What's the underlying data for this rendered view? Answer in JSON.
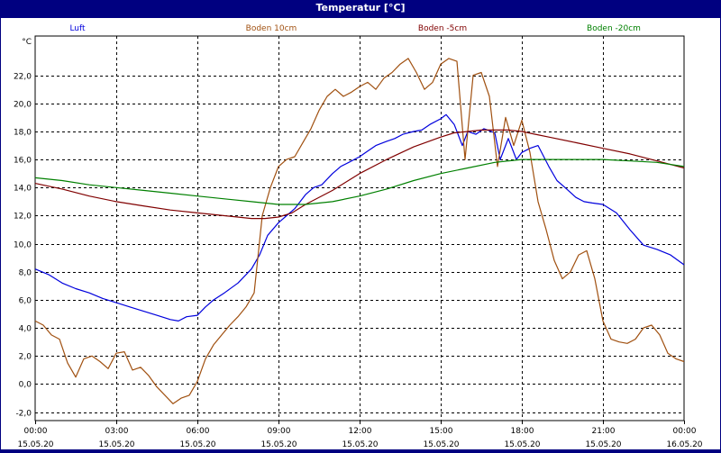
{
  "window": {
    "title": "Temperatur [°C]"
  },
  "chart_data": {
    "type": "line",
    "ylabel": "°C",
    "ylim": [
      -2.6,
      24.8
    ],
    "grid": true,
    "legend_position": "top",
    "yticks": [
      -2.0,
      0.0,
      2.0,
      4.0,
      6.0,
      8.0,
      10.0,
      12.0,
      14.0,
      16.0,
      18.0,
      20.0,
      22.0
    ],
    "ytick_labels": [
      "-2,0",
      "0,0",
      "2,0",
      "4,0",
      "6,0",
      "8,0",
      "10,0",
      "12,0",
      "14,0",
      "16,0",
      "18,0",
      "20,0",
      "22,0"
    ],
    "xlim": [
      0,
      24
    ],
    "xticks": [
      0,
      3,
      6,
      9,
      12,
      15,
      18,
      21,
      24
    ],
    "xtick_times": [
      "00:00",
      "03:00",
      "06:00",
      "09:00",
      "12:00",
      "15:00",
      "18:00",
      "21:00",
      "00:00"
    ],
    "xtick_dates": [
      "15.05.20",
      "15.05.20",
      "15.05.20",
      "15.05.20",
      "15.05.20",
      "15.05.20",
      "15.05.20",
      "15.05.20",
      "16.05.20"
    ],
    "series": [
      {
        "name": "Luft",
        "color": "#0000dd",
        "x": [
          0,
          0.5,
          1,
          1.5,
          2,
          2.5,
          3,
          3.5,
          4,
          4.5,
          5,
          5.3,
          5.6,
          6,
          6.3,
          6.6,
          7,
          7.5,
          8,
          8.3,
          8.6,
          9,
          9.3,
          9.6,
          10,
          10.3,
          10.6,
          11,
          11.3,
          11.6,
          12,
          12.3,
          12.6,
          13,
          13.3,
          13.6,
          14,
          14.3,
          14.6,
          15,
          15.2,
          15.5,
          15.8,
          16,
          16.3,
          16.6,
          17,
          17.2,
          17.5,
          17.8,
          18,
          18.3,
          18.6,
          19,
          19.3,
          19.6,
          20,
          20.3,
          20.6,
          21,
          21.5,
          22,
          22.5,
          23,
          23.5,
          24
        ],
        "values": [
          8.2,
          7.8,
          7.2,
          6.8,
          6.5,
          6.1,
          5.8,
          5.5,
          5.2,
          4.9,
          4.6,
          4.5,
          4.8,
          4.9,
          5.5,
          6.0,
          6.5,
          7.2,
          8.2,
          9.2,
          10.6,
          11.5,
          12.0,
          12.5,
          13.5,
          14.0,
          14.2,
          15.0,
          15.5,
          15.8,
          16.2,
          16.6,
          17.0,
          17.3,
          17.5,
          17.8,
          18.0,
          18.1,
          18.5,
          18.9,
          19.2,
          18.5,
          17.0,
          18.0,
          17.8,
          18.2,
          17.9,
          16.0,
          17.5,
          16.0,
          16.5,
          16.8,
          17.0,
          15.5,
          14.5,
          14.0,
          13.3,
          13.0,
          12.9,
          12.8,
          12.2,
          11.0,
          9.9,
          9.6,
          9.2,
          8.5
        ]
      },
      {
        "name": "Boden 10cm",
        "color": "#a05010",
        "x": [
          0,
          0.3,
          0.6,
          0.9,
          1.2,
          1.5,
          1.8,
          2.1,
          2.4,
          2.7,
          3.0,
          3.3,
          3.6,
          3.9,
          4.2,
          4.5,
          4.8,
          5.1,
          5.4,
          5.7,
          6.0,
          6.3,
          6.6,
          6.9,
          7.2,
          7.5,
          7.8,
          8.1,
          8.4,
          8.7,
          9.0,
          9.3,
          9.6,
          9.9,
          10.2,
          10.5,
          10.8,
          11.1,
          11.4,
          11.7,
          12.0,
          12.3,
          12.6,
          12.9,
          13.2,
          13.5,
          13.8,
          14.1,
          14.4,
          14.7,
          15.0,
          15.3,
          15.6,
          15.9,
          16.2,
          16.5,
          16.8,
          17.1,
          17.4,
          17.7,
          18.0,
          18.3,
          18.6,
          18.9,
          19.2,
          19.5,
          19.8,
          20.1,
          20.4,
          20.7,
          21.0,
          21.3,
          21.6,
          21.9,
          22.2,
          22.5,
          22.8,
          23.1,
          23.4,
          23.7,
          24.0
        ],
        "values": [
          4.5,
          4.2,
          3.5,
          3.2,
          1.5,
          0.5,
          1.8,
          2.0,
          1.6,
          1.1,
          2.2,
          2.3,
          1.0,
          1.2,
          0.6,
          -0.2,
          -0.8,
          -1.4,
          -1.0,
          -0.8,
          0.2,
          1.8,
          2.8,
          3.5,
          4.2,
          4.8,
          5.5,
          6.5,
          12.0,
          14.0,
          15.5,
          16.0,
          16.2,
          17.2,
          18.2,
          19.5,
          20.5,
          21.0,
          20.5,
          20.8,
          21.2,
          21.5,
          21.0,
          21.8,
          22.2,
          22.8,
          23.2,
          22.2,
          21.0,
          21.5,
          22.8,
          23.2,
          23.0,
          16.0,
          22.0,
          22.2,
          20.5,
          15.5,
          19.0,
          17.0,
          18.8,
          16.5,
          13.0,
          11.0,
          8.8,
          7.5,
          8.0,
          9.2,
          9.5,
          7.5,
          4.5,
          3.2,
          3.0,
          2.9,
          3.2,
          4.0,
          4.2,
          3.5,
          2.2,
          1.8,
          1.6
        ]
      },
      {
        "name": "Boden -5cm",
        "color": "#800000",
        "x": [
          0,
          1,
          2,
          3,
          4,
          5,
          6,
          7,
          8,
          8.5,
          9,
          9.5,
          10,
          11,
          12,
          13,
          14,
          15,
          15.5,
          16,
          16.5,
          17,
          17.5,
          18,
          18.5,
          19,
          20,
          21,
          22,
          23,
          24
        ],
        "values": [
          14.3,
          13.9,
          13.4,
          13.0,
          12.7,
          12.4,
          12.2,
          12.0,
          11.8,
          11.8,
          11.9,
          12.2,
          12.8,
          13.8,
          15.0,
          16.0,
          16.9,
          17.6,
          17.9,
          18.0,
          18.1,
          18.1,
          18.1,
          18.0,
          17.8,
          17.6,
          17.2,
          16.8,
          16.4,
          15.9,
          15.4
        ]
      },
      {
        "name": "Boden -20cm",
        "color": "#008000",
        "x": [
          0,
          1,
          2,
          3,
          4,
          5,
          6,
          7,
          8,
          9,
          10,
          11,
          12,
          13,
          14,
          15,
          16,
          17,
          18,
          19,
          20,
          21,
          22,
          23,
          24
        ],
        "values": [
          14.7,
          14.5,
          14.2,
          14.0,
          13.8,
          13.6,
          13.4,
          13.2,
          13.0,
          12.8,
          12.8,
          13.0,
          13.4,
          13.9,
          14.5,
          15.0,
          15.4,
          15.8,
          16.0,
          16.0,
          16.0,
          16.0,
          15.9,
          15.8,
          15.5
        ]
      }
    ]
  }
}
